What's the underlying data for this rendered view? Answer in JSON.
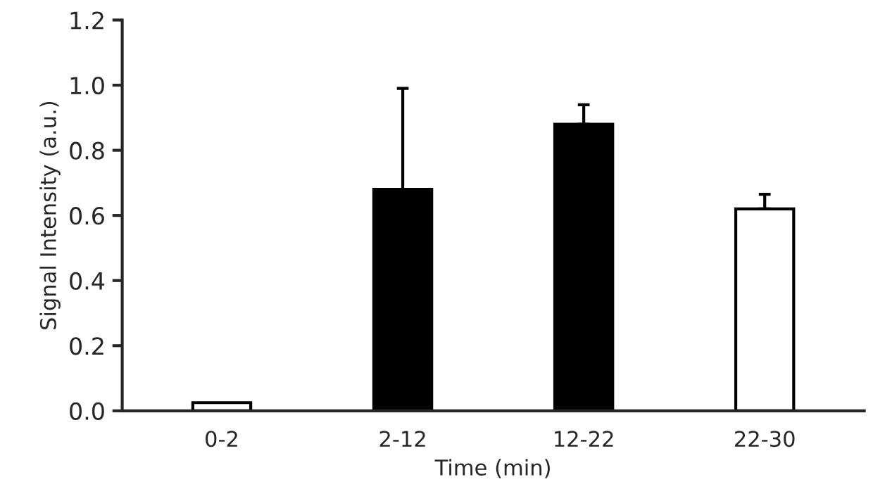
{
  "chart_data": {
    "type": "bar",
    "xlabel": "Time (min)",
    "ylabel": "Signal Intensity (a.u.)",
    "categories": [
      "0-2",
      "2-12",
      "12-22",
      "22-30"
    ],
    "values": [
      0.025,
      0.68,
      0.88,
      0.62
    ],
    "colors": [
      "#ffffff",
      "#000000",
      "#000000",
      "#ffffff"
    ],
    "errors": [
      null,
      [
        0.68,
        0.99
      ],
      [
        0.88,
        0.94
      ],
      [
        0.62,
        0.665
      ]
    ],
    "ylim": [
      0,
      1.2
    ],
    "yticks": [
      {
        "value": 0,
        "label": "0.0"
      },
      {
        "value": 0.2,
        "label": "0.2"
      },
      {
        "value": 0.4,
        "label": "0.4"
      },
      {
        "value": 0.6,
        "label": "0.6"
      },
      {
        "value": 0.8,
        "label": "0.8"
      },
      {
        "value": 1.0,
        "label": "1.0"
      },
      {
        "value": 1.2,
        "label": "1.2"
      }
    ],
    "grid": false,
    "legend": false
  }
}
